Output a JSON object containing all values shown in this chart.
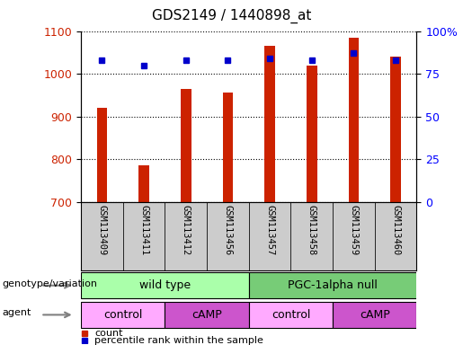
{
  "title": "GDS2149 / 1440898_at",
  "samples": [
    "GSM113409",
    "GSM113411",
    "GSM113412",
    "GSM113456",
    "GSM113457",
    "GSM113458",
    "GSM113459",
    "GSM113460"
  ],
  "counts": [
    920,
    785,
    965,
    955,
    1065,
    1020,
    1085,
    1040
  ],
  "percentile_ranks": [
    83,
    80,
    83,
    83,
    84,
    83,
    87,
    83
  ],
  "ylim_left": [
    700,
    1100
  ],
  "ylim_right": [
    0,
    100
  ],
  "yticks_left": [
    700,
    800,
    900,
    1000,
    1100
  ],
  "yticks_right": [
    0,
    25,
    50,
    75,
    100
  ],
  "bar_color": "#cc2200",
  "dot_color": "#0000cc",
  "bar_bottom": 700,
  "genotype_groups": [
    {
      "label": "wild type",
      "start": 0,
      "end": 4,
      "color": "#aaffaa"
    },
    {
      "label": "PGC-1alpha null",
      "start": 4,
      "end": 8,
      "color": "#77cc77"
    }
  ],
  "agent_groups": [
    {
      "label": "control",
      "start": 0,
      "end": 2,
      "color": "#ffaaff"
    },
    {
      "label": "cAMP",
      "start": 2,
      "end": 4,
      "color": "#cc55cc"
    },
    {
      "label": "control",
      "start": 4,
      "end": 6,
      "color": "#ffaaff"
    },
    {
      "label": "cAMP",
      "start": 6,
      "end": 8,
      "color": "#cc55cc"
    }
  ],
  "legend_count_color": "#cc2200",
  "legend_pct_color": "#0000cc",
  "cell_bg_color": "#cccccc",
  "plot_bg_color": "#ffffff"
}
